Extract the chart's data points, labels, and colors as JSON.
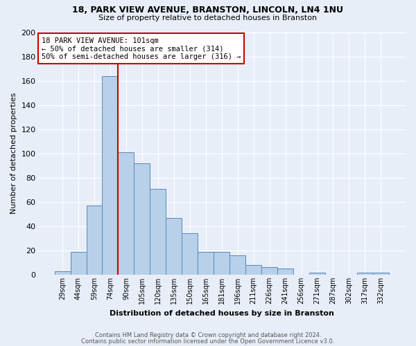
{
  "title_line1": "18, PARK VIEW AVENUE, BRANSTON, LINCOLN, LN4 1NU",
  "title_line2": "Size of property relative to detached houses in Branston",
  "xlabel": "Distribution of detached houses by size in Branston",
  "ylabel": "Number of detached properties",
  "categories": [
    "29sqm",
    "44sqm",
    "59sqm",
    "74sqm",
    "90sqm",
    "105sqm",
    "120sqm",
    "135sqm",
    "150sqm",
    "165sqm",
    "181sqm",
    "196sqm",
    "211sqm",
    "226sqm",
    "241sqm",
    "256sqm",
    "271sqm",
    "287sqm",
    "302sqm",
    "317sqm",
    "332sqm"
  ],
  "values": [
    3,
    19,
    57,
    164,
    101,
    92,
    71,
    47,
    34,
    19,
    19,
    16,
    8,
    6,
    5,
    0,
    2,
    0,
    0,
    2,
    2
  ],
  "bar_color": "#b8d0e8",
  "bar_edge_color": "#5588bb",
  "vline_color": "#cc0000",
  "annotation_text": "18 PARK VIEW AVENUE: 101sqm\n← 50% of detached houses are smaller (314)\n50% of semi-detached houses are larger (316) →",
  "annotation_box_color": "white",
  "annotation_box_edge_color": "#cc0000",
  "ylim": [
    0,
    200
  ],
  "yticks": [
    0,
    20,
    40,
    60,
    80,
    100,
    120,
    140,
    160,
    180,
    200
  ],
  "background_color": "#e8eef8",
  "grid_color": "white",
  "footnote_line1": "Contains HM Land Registry data © Crown copyright and database right 2024.",
  "footnote_line2": "Contains public sector information licensed under the Open Government Licence v3.0."
}
